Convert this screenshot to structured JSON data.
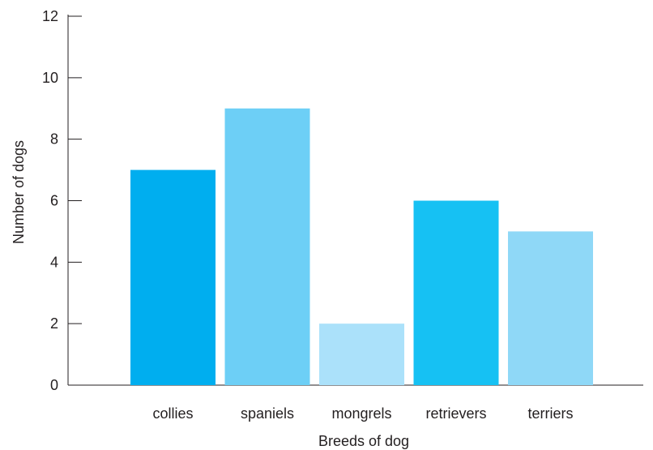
{
  "chart_data": {
    "type": "bar",
    "categories": [
      "collies",
      "spaniels",
      "mongrels",
      "retrievers",
      "terriers"
    ],
    "values": [
      7,
      9,
      2,
      6,
      5
    ],
    "colors": [
      "#00aeef",
      "#6dcff6",
      "#abe1fa",
      "#16c1f3",
      "#8fd8f7"
    ],
    "xlabel": "Breeds of dog",
    "ylabel": "Number of dogs",
    "ylim": [
      0,
      12
    ],
    "yticks": [
      "0",
      "2",
      "4",
      "6",
      "8",
      "10",
      "12"
    ],
    "grid": false
  }
}
